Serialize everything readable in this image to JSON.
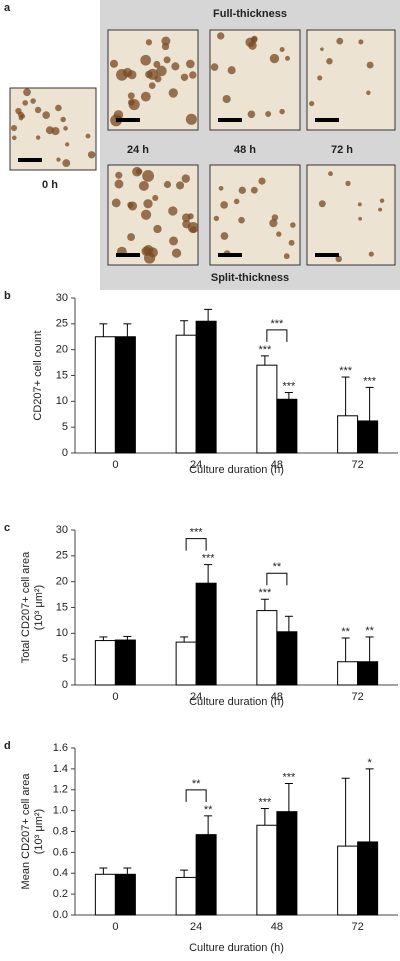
{
  "panel_a": {
    "label": "a",
    "top_title": "Full-thickness",
    "bottom_title": "Split-thickness",
    "time_labels": [
      "24 h",
      "48 h",
      "72 h"
    ],
    "baseline_label": "0 h"
  },
  "chart_data": [
    {
      "type": "bar",
      "panel": "b",
      "ylabel": [
        "CD207+ cell count"
      ],
      "xlabel": "Culture duration (h)",
      "categories": [
        "0",
        "24",
        "48",
        "72"
      ],
      "ylim": [
        0,
        30
      ],
      "yticks": [
        0,
        5,
        10,
        15,
        20,
        25,
        30
      ],
      "series": [
        {
          "color": "#ffffff",
          "values": [
            22.5,
            22.8,
            17,
            7.2
          ],
          "errors": [
            2.5,
            2.8,
            1.8,
            7.5
          ],
          "stars": [
            null,
            null,
            "***",
            "***"
          ]
        },
        {
          "color": "#000000",
          "values": [
            22.5,
            25.5,
            10.4,
            6.2
          ],
          "errors": [
            2.5,
            2.3,
            1.3,
            6.5
          ],
          "stars": [
            null,
            null,
            "***",
            "***"
          ]
        }
      ],
      "brackets": [
        {
          "category": 2,
          "label": "***"
        }
      ]
    },
    {
      "type": "bar",
      "panel": "c",
      "ylabel": [
        "Total CD207+ cell area",
        "(10³ μm²)"
      ],
      "xlabel": "Culture duration (h)",
      "categories": [
        "0",
        "24",
        "48",
        "72"
      ],
      "ylim": [
        0,
        30
      ],
      "yticks": [
        0,
        5,
        10,
        15,
        20,
        25,
        30
      ],
      "series": [
        {
          "color": "#ffffff",
          "values": [
            8.6,
            8.3,
            14.4,
            4.5
          ],
          "errors": [
            0.7,
            1.0,
            2.2,
            4.6
          ],
          "stars": [
            null,
            null,
            "***",
            "**"
          ]
        },
        {
          "color": "#000000",
          "values": [
            8.7,
            19.7,
            10.3,
            4.5
          ],
          "errors": [
            0.7,
            3.6,
            3.0,
            4.8
          ],
          "stars": [
            null,
            "***",
            null,
            "**"
          ]
        }
      ],
      "brackets": [
        {
          "category": 1,
          "label": "***"
        },
        {
          "category": 2,
          "label": "**"
        }
      ]
    },
    {
      "type": "bar",
      "panel": "d",
      "ylabel": [
        "Mean CD207+ cell area",
        "(10³ μm²)"
      ],
      "xlabel": "Culture duration (h)",
      "categories": [
        "0",
        "24",
        "48",
        "72"
      ],
      "ylim": [
        0,
        1.6
      ],
      "yticks": [
        {
          "value": 0,
          "label": "0.0"
        },
        0.2,
        0.4,
        0.6,
        0.8,
        {
          "value": 1,
          "label": "1.0"
        },
        1.2,
        1.4,
        1.6
      ],
      "series": [
        {
          "color": "#ffffff",
          "values": [
            0.39,
            0.36,
            0.86,
            0.66
          ],
          "errors": [
            0.06,
            0.07,
            0.16,
            0.65
          ],
          "stars": [
            null,
            null,
            "***",
            null
          ]
        },
        {
          "color": "#000000",
          "values": [
            0.39,
            0.77,
            0.99,
            0.7
          ],
          "errors": [
            0.06,
            0.18,
            0.27,
            0.7
          ],
          "stars": [
            null,
            "**",
            "***",
            "*"
          ]
        }
      ],
      "brackets": [
        {
          "category": 1,
          "label": "**"
        }
      ]
    }
  ]
}
